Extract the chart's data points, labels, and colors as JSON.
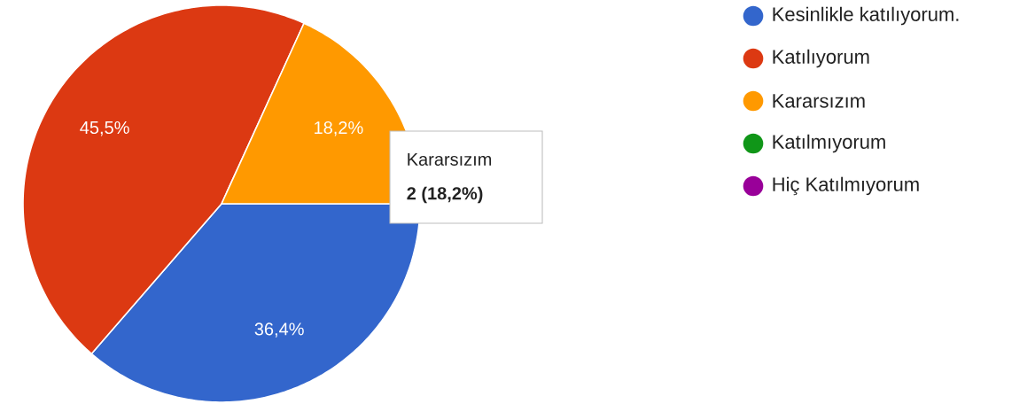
{
  "chart_data": {
    "type": "pie",
    "categories": [
      "Kesinlikle katılıyorum.",
      "Katılıyorum",
      "Kararsızım",
      "Katılmıyorum",
      "Hiç Katılmıyorum"
    ],
    "values": [
      36.4,
      45.5,
      18.2,
      0,
      0
    ],
    "value_labels": [
      "36,4%",
      "45,5%",
      "18,2%",
      null,
      null
    ],
    "colors": [
      "#3366cc",
      "#dc3912",
      "#ff9900",
      "#109618",
      "#990099"
    ],
    "legend": "top right",
    "annotations": [
      "Kararsızım",
      "2 (18,2%)"
    ]
  }
}
